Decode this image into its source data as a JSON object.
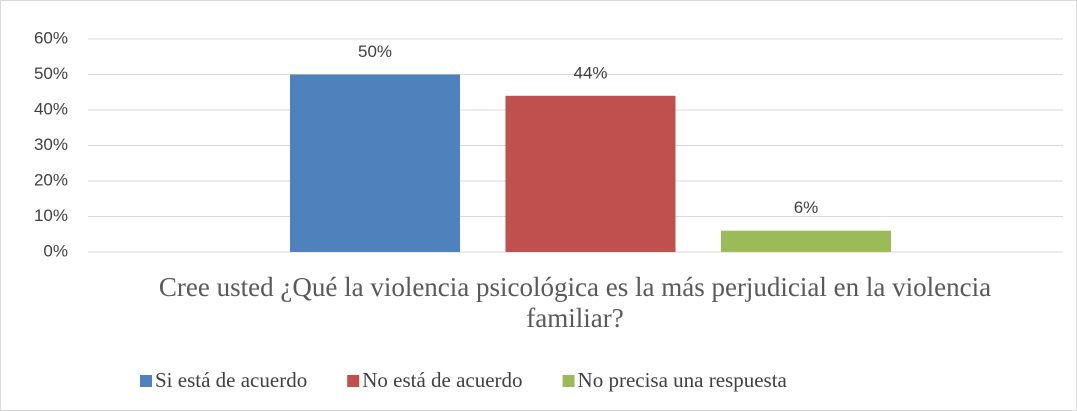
{
  "chart_data": {
    "type": "bar",
    "categories": [
      "Cree usted ¿Qué la violencia psicológica es la más perjudicial en la violencia familiar?"
    ],
    "series": [
      {
        "name": "Si está de acuerdo",
        "color": "#4f81bd",
        "values": [
          50
        ],
        "value_labels": [
          "50%"
        ]
      },
      {
        "name": "No está de acuerdo",
        "color": "#c0504d",
        "values": [
          44
        ],
        "value_labels": [
          "44%"
        ]
      },
      {
        "name": "No precisa una respuesta",
        "color": "#9bbb59",
        "values": [
          6
        ],
        "value_labels": [
          "6%"
        ]
      }
    ],
    "ylim": [
      0,
      60
    ],
    "yticks": [
      {
        "value": 0,
        "label": "0%"
      },
      {
        "value": 10,
        "label": "10%"
      },
      {
        "value": 20,
        "label": "20%"
      },
      {
        "value": 30,
        "label": "30%"
      },
      {
        "value": 40,
        "label": "40%"
      },
      {
        "value": 50,
        "label": "50%"
      },
      {
        "value": 60,
        "label": "60%"
      }
    ],
    "grid": true,
    "legend": "bottom"
  }
}
